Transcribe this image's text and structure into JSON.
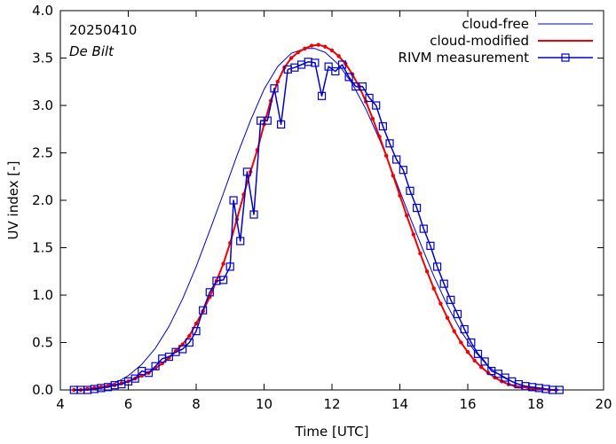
{
  "chart_data": {
    "type": "line",
    "title": "",
    "annotations": {
      "date": "20250410",
      "station": "De Bilt"
    },
    "xlabel": "Time  [UTC]",
    "ylabel": "UV index  [-]",
    "xlim": [
      4,
      20
    ],
    "ylim": [
      0,
      4
    ],
    "xticks": [
      4,
      6,
      8,
      10,
      12,
      14,
      16,
      18,
      20
    ],
    "yticks": [
      0.0,
      0.5,
      1.0,
      1.5,
      2.0,
      2.5,
      3.0,
      3.5,
      4.0
    ],
    "xtick_labels": [
      "4",
      "6",
      "8",
      "10",
      "12",
      "14",
      "16",
      "18",
      "20"
    ],
    "ytick_labels": [
      "0.0",
      "0.5",
      "1.0",
      "1.5",
      "2.0",
      "2.5",
      "3.0",
      "3.5",
      "4.0"
    ],
    "grid": false,
    "legend_position": "top-right",
    "series": [
      {
        "name": "cloud-free",
        "color": "#0000cc",
        "style": "thin-line",
        "x": [
          4.4,
          4.8,
          5.2,
          5.6,
          6.0,
          6.4,
          6.8,
          7.2,
          7.6,
          8.0,
          8.4,
          8.8,
          9.2,
          9.6,
          10.0,
          10.4,
          10.8,
          11.2,
          11.5,
          11.8,
          12.2,
          12.6,
          13.0,
          13.4,
          13.8,
          14.2,
          14.6,
          15.0,
          15.4,
          15.8,
          16.2,
          16.6,
          17.0,
          17.4,
          17.8,
          18.2,
          18.6,
          18.8
        ],
        "values": [
          0.0,
          0.01,
          0.03,
          0.07,
          0.15,
          0.27,
          0.44,
          0.67,
          0.96,
          1.3,
          1.68,
          2.07,
          2.47,
          2.84,
          3.17,
          3.41,
          3.55,
          3.6,
          3.6,
          3.56,
          3.43,
          3.23,
          2.96,
          2.64,
          2.28,
          1.91,
          1.55,
          1.2,
          0.89,
          0.62,
          0.41,
          0.25,
          0.14,
          0.07,
          0.03,
          0.01,
          0.0,
          0.0
        ]
      },
      {
        "name": "cloud-modified",
        "color": "#ee0000",
        "style": "thick-line-dots",
        "x": [
          4.4,
          4.6,
          4.8,
          5.0,
          5.2,
          5.4,
          5.6,
          5.8,
          6.0,
          6.2,
          6.4,
          6.6,
          6.8,
          7.0,
          7.2,
          7.4,
          7.6,
          7.8,
          8.0,
          8.2,
          8.4,
          8.6,
          8.8,
          9.0,
          9.2,
          9.4,
          9.6,
          9.8,
          10.0,
          10.2,
          10.4,
          10.6,
          10.8,
          11.0,
          11.2,
          11.4,
          11.6,
          11.8,
          12.0,
          12.2,
          12.4,
          12.6,
          12.8,
          13.0,
          13.2,
          13.4,
          13.6,
          13.8,
          14.0,
          14.2,
          14.4,
          14.6,
          14.8,
          15.0,
          15.2,
          15.4,
          15.6,
          15.8,
          16.0,
          16.2,
          16.4,
          16.6,
          16.8,
          17.0,
          17.2,
          17.4,
          17.6,
          17.8,
          18.0,
          18.2,
          18.4,
          18.6
        ],
        "values": [
          0.0,
          0.0,
          0.01,
          0.02,
          0.03,
          0.04,
          0.05,
          0.07,
          0.09,
          0.12,
          0.15,
          0.18,
          0.23,
          0.28,
          0.34,
          0.41,
          0.48,
          0.57,
          0.7,
          0.83,
          0.98,
          1.15,
          1.33,
          1.55,
          1.8,
          2.06,
          2.3,
          2.53,
          2.8,
          3.05,
          3.25,
          3.4,
          3.5,
          3.56,
          3.6,
          3.63,
          3.64,
          3.62,
          3.58,
          3.52,
          3.44,
          3.33,
          3.2,
          3.04,
          2.86,
          2.67,
          2.47,
          2.26,
          2.05,
          1.84,
          1.64,
          1.44,
          1.25,
          1.07,
          0.91,
          0.76,
          0.62,
          0.5,
          0.4,
          0.31,
          0.24,
          0.18,
          0.13,
          0.09,
          0.06,
          0.04,
          0.03,
          0.02,
          0.01,
          0.01,
          0.0,
          0.0
        ]
      },
      {
        "name": "RIVM measurement",
        "color": "#0000cc",
        "style": "line-squares",
        "x": [
          4.4,
          4.6,
          4.8,
          5.0,
          5.2,
          5.4,
          5.6,
          5.8,
          6.0,
          6.2,
          6.4,
          6.6,
          6.8,
          7.0,
          7.2,
          7.4,
          7.6,
          7.8,
          8.0,
          8.2,
          8.4,
          8.6,
          8.8,
          9.0,
          9.1,
          9.3,
          9.5,
          9.7,
          9.9,
          10.1,
          10.3,
          10.5,
          10.7,
          10.9,
          11.1,
          11.3,
          11.5,
          11.7,
          11.9,
          12.1,
          12.3,
          12.5,
          12.7,
          12.9,
          13.1,
          13.3,
          13.5,
          13.7,
          13.9,
          14.1,
          14.3,
          14.5,
          14.7,
          14.9,
          15.1,
          15.3,
          15.5,
          15.7,
          15.9,
          16.1,
          16.3,
          16.5,
          16.7,
          16.9,
          17.1,
          17.3,
          17.5,
          17.7,
          17.9,
          18.1,
          18.3,
          18.5,
          18.7
        ],
        "values": [
          0.0,
          0.0,
          0.0,
          0.01,
          0.02,
          0.03,
          0.05,
          0.06,
          0.09,
          0.12,
          0.2,
          0.18,
          0.25,
          0.33,
          0.35,
          0.4,
          0.43,
          0.5,
          0.62,
          0.84,
          1.03,
          1.15,
          1.16,
          1.3,
          2.0,
          1.57,
          2.3,
          1.85,
          2.84,
          2.84,
          3.18,
          2.8,
          3.38,
          3.4,
          3.43,
          3.46,
          3.45,
          3.1,
          3.41,
          3.36,
          3.43,
          3.3,
          3.2,
          3.2,
          3.08,
          3.0,
          2.78,
          2.6,
          2.43,
          2.32,
          2.1,
          1.92,
          1.7,
          1.52,
          1.3,
          1.12,
          0.95,
          0.8,
          0.64,
          0.5,
          0.38,
          0.3,
          0.2,
          0.17,
          0.13,
          0.09,
          0.06,
          0.04,
          0.03,
          0.02,
          0.01,
          0.0,
          0.0
        ]
      }
    ]
  }
}
